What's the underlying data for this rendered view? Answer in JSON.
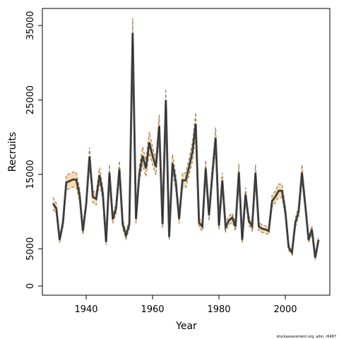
{
  "chart_data": {
    "type": "line",
    "x_label": "Year",
    "y_label": "Recruits",
    "annotation": "stockassessment.org, aibn, r6487",
    "xlim": [
      1926.8,
      2013.4
    ],
    "xticks": [
      1940,
      1960,
      1980,
      2000
    ],
    "ylim": [
      -1233,
      37290
    ],
    "yticks": [
      0,
      5000,
      15000,
      25000,
      35000
    ],
    "line_color": "#555555",
    "band_color": "#f7dcae",
    "band_edge_color": "#a07850",
    "x": [
      1930,
      1931,
      1932,
      1933,
      1934,
      1935,
      1936,
      1937,
      1938,
      1939,
      1940,
      1941,
      1942,
      1943,
      1944,
      1945,
      1946,
      1947,
      1948,
      1949,
      1950,
      1951,
      1952,
      1953,
      1954,
      1955,
      1956,
      1957,
      1958,
      1959,
      1960,
      1961,
      1962,
      1963,
      1964,
      1965,
      1966,
      1967,
      1968,
      1969,
      1970,
      1971,
      1972,
      1973,
      1974,
      1975,
      1976,
      1977,
      1978,
      1979,
      1980,
      1981,
      1982,
      1983,
      1984,
      1985,
      1986,
      1987,
      1988,
      1989,
      1990,
      1991,
      1992,
      1993,
      1994,
      1995,
      1996,
      1997,
      1998,
      1999,
      2000,
      2001,
      2002,
      2003,
      2004,
      2005,
      2006,
      2007,
      2008,
      2009,
      2010
    ],
    "values": [
      11100,
      10400,
      6200,
      8500,
      13900,
      14100,
      14300,
      14300,
      12300,
      7400,
      11000,
      17400,
      12000,
      11700,
      14900,
      12500,
      5900,
      15200,
      9000,
      10400,
      15700,
      8300,
      6800,
      8300,
      34000,
      9000,
      15000,
      17500,
      15800,
      19300,
      17500,
      16000,
      21500,
      8300,
      25000,
      6600,
      16500,
      14000,
      9000,
      14200,
      14200,
      16000,
      18000,
      21800,
      8500,
      8000,
      15800,
      9500,
      15000,
      19900,
      8100,
      14200,
      7900,
      8800,
      9200,
      8000,
      15300,
      6200,
      12300,
      8800,
      8000,
      15200,
      8000,
      7700,
      7600,
      7400,
      11400,
      12000,
      12800,
      12800,
      10000,
      5200,
      4500,
      8500,
      10000,
      15200,
      10900,
      6200,
      7600,
      3800,
      6200
    ],
    "upper": [
      11900,
      11100,
      6600,
      9100,
      14900,
      15100,
      15300,
      15300,
      13200,
      7900,
      11800,
      18600,
      12800,
      12500,
      15900,
      13400,
      6300,
      16300,
      9600,
      11100,
      16800,
      8900,
      7300,
      8900,
      36000,
      9600,
      16100,
      18700,
      16900,
      20700,
      18700,
      17100,
      23000,
      8900,
      26500,
      7100,
      17700,
      15000,
      9600,
      15200,
      15200,
      17100,
      19300,
      23300,
      9100,
      8600,
      16900,
      10200,
      16100,
      21300,
      8700,
      15200,
      8500,
      9400,
      9800,
      8600,
      16400,
      6600,
      13200,
      9400,
      8600,
      16300,
      8600,
      8200,
      8100,
      7900,
      12200,
      12800,
      13700,
      13700,
      10700,
      5600,
      4800,
      9100,
      10700,
      16300,
      11700,
      6600,
      8100,
      4100,
      6600
    ],
    "lower": [
      10300,
      9700,
      5800,
      7900,
      12900,
      13100,
      13300,
      13300,
      11400,
      6900,
      10200,
      16200,
      11200,
      10900,
      13900,
      11600,
      5500,
      14100,
      8400,
      9700,
      14600,
      7700,
      6300,
      7700,
      32000,
      8400,
      14000,
      16300,
      14700,
      17900,
      16300,
      14900,
      20000,
      7700,
      23500,
      6100,
      15300,
      13000,
      8400,
      13200,
      13200,
      14900,
      16700,
      20300,
      7900,
      7400,
      14700,
      8800,
      14000,
      18500,
      7500,
      13200,
      7300,
      8200,
      8600,
      7400,
      14200,
      5800,
      11400,
      8200,
      7400,
      14100,
      7400,
      7200,
      7100,
      6900,
      10600,
      11200,
      11900,
      11900,
      9300,
      4800,
      4200,
      7900,
      9300,
      14100,
      10100,
      5800,
      7100,
      3500,
      5800
    ]
  }
}
